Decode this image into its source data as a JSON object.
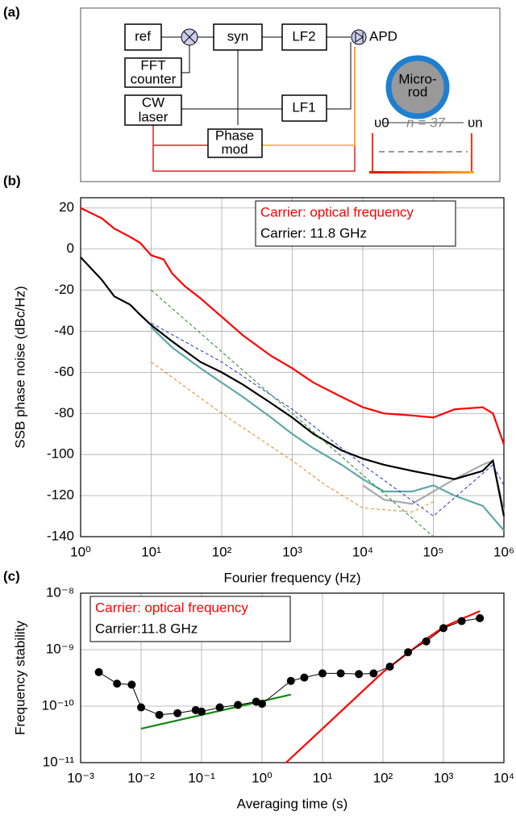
{
  "diagram": {
    "label": "(a)",
    "nodes": [
      "ref",
      "syn",
      "LF2",
      "APD",
      "FFT",
      "counter",
      "CW",
      "laser",
      "LF1",
      "Phase",
      "mod",
      "Micro-",
      "rod"
    ],
    "spectrum": {
      "start": "υ0",
      "gap": "n = 37",
      "end": "υn"
    }
  },
  "chart_data": [
    {
      "type": "line",
      "label": "(b)",
      "ylabel": "SSB phase noise (dBc/Hz)",
      "xlabel": "Fourier frequency (Hz)",
      "xscale": "log",
      "grid": true,
      "legend": "upper right",
      "xlim": [
        1,
        1000000
      ],
      "ylim": [
        -140,
        25
      ],
      "xticks": [
        {
          "value": 1,
          "label": "10⁰"
        },
        {
          "value": 10,
          "label": "10¹"
        },
        {
          "value": 100,
          "label": "10²"
        },
        {
          "value": 1000,
          "label": "10³"
        },
        {
          "value": 10000,
          "label": "10⁴"
        },
        {
          "value": 100000,
          "label": "10⁵"
        },
        {
          "value": 1000000,
          "label": "10⁶"
        }
      ],
      "yticks": [
        -140,
        -120,
        -100,
        -80,
        -60,
        -40,
        -20,
        0,
        20
      ],
      "series": [
        {
          "name": "Carrier: optical frequency",
          "color": "#ff0000",
          "x": [
            1,
            2,
            3,
            5,
            7,
            10,
            15,
            20,
            30,
            50,
            100,
            200,
            500,
            1000,
            2000,
            5000,
            10000,
            20000,
            50000,
            100000,
            200000,
            500000,
            700000,
            1000000
          ],
          "values": [
            20,
            15,
            10,
            6,
            3,
            -3,
            -5,
            -12,
            -18,
            -24,
            -33,
            -42,
            -52,
            -58,
            -65,
            -72,
            -77,
            -80,
            -81,
            -82,
            -78,
            -77,
            -80,
            -95
          ]
        },
        {
          "color": "#5fa8a8",
          "x": [
            10,
            20,
            50,
            100,
            200,
            500,
            1000,
            2000,
            5000,
            10000,
            20000,
            50000,
            100000,
            200000,
            500000,
            1000000
          ],
          "values": [
            -38,
            -48,
            -58,
            -65,
            -72,
            -82,
            -90,
            -97,
            -105,
            -112,
            -118,
            -118,
            -115,
            -120,
            -125,
            -137
          ]
        },
        {
          "color": "#aaaaaa",
          "x": [
            10000,
            20000,
            50000,
            100000,
            200000,
            500000,
            700000,
            1000000
          ],
          "values": [
            -115,
            -122,
            -124,
            -118,
            -112,
            -105,
            -103,
            -128
          ]
        },
        {
          "name": "Carrier: 11.8 GHz",
          "color": "#000000",
          "x": [
            1,
            2,
            3,
            5,
            7,
            10,
            20,
            50,
            100,
            200,
            500,
            1000,
            2000,
            5000,
            10000,
            20000,
            50000,
            100000,
            200000,
            500000,
            700000,
            1000000
          ],
          "values": [
            -4,
            -15,
            -23,
            -27,
            -32,
            -37,
            -45,
            -55,
            -60,
            -66,
            -75,
            -82,
            -90,
            -98,
            -102,
            -105,
            -108,
            -110,
            -112,
            -108,
            -103,
            -130
          ]
        },
        {
          "color": "#2233cc",
          "dash": true,
          "x": [
            10,
            100,
            1000,
            10000,
            100000,
            700000,
            1000000
          ],
          "values": [
            -36,
            -55,
            -78,
            -105,
            -130,
            -105,
            -115
          ]
        },
        {
          "color": "#228822",
          "dash": true,
          "x": [
            10,
            100000
          ],
          "values": [
            -20,
            -140
          ]
        },
        {
          "color": "#dd8822",
          "dash": true,
          "x": [
            10,
            100,
            1000,
            3000,
            10000,
            50000,
            100000
          ],
          "values": [
            -55,
            -80,
            -103,
            -115,
            -126,
            -128,
            -123
          ]
        }
      ]
    },
    {
      "type": "line",
      "label": "(c)",
      "ylabel": "Frequency stability",
      "xlabel": "Averaging time (s)",
      "xscale": "log",
      "yscale": "log",
      "grid": true,
      "legend": "upper left",
      "xlim": [
        0.001,
        10000
      ],
      "ylim": [
        1e-11,
        1e-08
      ],
      "xticks": [
        {
          "value": 0.001,
          "label": "10⁻³"
        },
        {
          "value": 0.01,
          "label": "10⁻²"
        },
        {
          "value": 0.1,
          "label": "10⁻¹"
        },
        {
          "value": 1,
          "label": "10⁰"
        },
        {
          "value": 10,
          "label": "10¹"
        },
        {
          "value": 100,
          "label": "10²"
        },
        {
          "value": 1000,
          "label": "10³"
        },
        {
          "value": 10000,
          "label": "10⁴"
        }
      ],
      "yticks": [
        {
          "value": 1e-11,
          "label": "10⁻¹¹"
        },
        {
          "value": 1e-10,
          "label": "10⁻¹⁰"
        },
        {
          "value": 1e-09,
          "label": "10⁻⁹"
        },
        {
          "value": 1e-08,
          "label": "10⁻⁸"
        }
      ],
      "series": [
        {
          "color": "#118811",
          "x": [
            0.01,
            3
          ],
          "values": [
            4e-11,
            1.6e-10
          ]
        },
        {
          "name": "Carrier: optical frequency",
          "color": "#ff0000",
          "x": [
            2.5,
            10,
            100,
            500,
            1000,
            2000,
            4000
          ],
          "values": [
            1e-11,
            4e-11,
            4e-10,
            1.5e-09,
            2.5e-09,
            3.5e-09,
            4.8e-09
          ]
        },
        {
          "name": "Carrier:11.8 GHz",
          "color": "#000000",
          "markers": true,
          "x": [
            0.002,
            0.004,
            0.007,
            0.01,
            0.02,
            0.04,
            0.08,
            0.1,
            0.2,
            0.4,
            0.8,
            1,
            3,
            5,
            10,
            20,
            40,
            70,
            130,
            260,
            520,
            1000,
            2000,
            4000
          ],
          "values": [
            4e-10,
            2.5e-10,
            2.4e-10,
            9.5e-11,
            7e-11,
            7.5e-11,
            8.5e-11,
            8e-11,
            9.5e-11,
            1.05e-10,
            1.2e-10,
            1.1e-10,
            2.8e-10,
            3.2e-10,
            3.8e-10,
            3.8e-10,
            3.7e-10,
            3.8e-10,
            5e-10,
            9e-10,
            1.4e-09,
            2.4e-09,
            3.2e-09,
            3.6e-09
          ]
        }
      ]
    }
  ]
}
